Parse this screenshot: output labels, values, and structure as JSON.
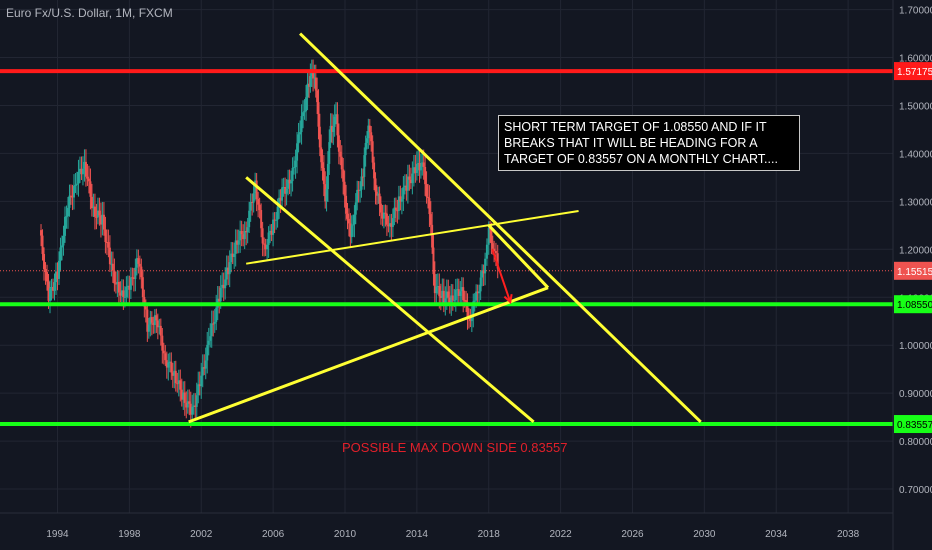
{
  "symbol_title": "Euro Fx/U.S. Dollar, 1M, FXCM",
  "annotation_text": "SHORT TERM TARGET OF 1.08550 AND IF IT BREAKS THAT IT WILL BE HEADING FOR A TARGET OF 0.83557 ON A MONTHLY CHART....",
  "max_downside_label": "POSSIBLE MAX DOWN SIDE 0.83557",
  "colors": {
    "background": "#131722",
    "grid": "#222633",
    "axis_text": "#b2b5be",
    "bull": "#26a69a",
    "bear": "#ef5350",
    "resistance": "#ff1a1a",
    "support": "#17ff17",
    "trendline": "#ffff33",
    "current_price": "#ef5350"
  },
  "chart_data": {
    "type": "line",
    "x_unit": "year",
    "xlim": [
      1990.8,
      2040.5
    ],
    "ylim": [
      0.65,
      1.72
    ],
    "x_ticks": [
      "1994",
      "1998",
      "2002",
      "2006",
      "2010",
      "2014",
      "2018",
      "2022",
      "2026",
      "2030",
      "2034",
      "2038"
    ],
    "y_ticks": [
      "1.70000",
      "1.60000",
      "1.50000",
      "1.40000",
      "1.30000",
      "1.20000",
      "1.10000",
      "1.00000",
      "0.90000",
      "0.80000",
      "0.70000"
    ],
    "price_series": {
      "name": "",
      "x": [
        1993.0,
        1993.5,
        1994.0,
        1994.5,
        1995.0,
        1995.5,
        1996.0,
        1996.5,
        1997.0,
        1997.5,
        1998.0,
        1998.5,
        1999.0,
        1999.5,
        2000.0,
        2000.5,
        2001.0,
        2001.5,
        2002.0,
        2002.5,
        2003.0,
        2003.5,
        2004.0,
        2004.5,
        2005.0,
        2005.5,
        2006.0,
        2006.5,
        2007.0,
        2007.5,
        2008.0,
        2008.3,
        2008.6,
        2008.9,
        2009.2,
        2009.5,
        2009.9,
        2010.3,
        2010.6,
        2011.0,
        2011.3,
        2011.7,
        2012.0,
        2012.5,
        2013.0,
        2013.5,
        2014.0,
        2014.3,
        2014.7,
        2015.0,
        2015.5,
        2016.0,
        2016.5,
        2016.9,
        2017.3,
        2017.8,
        2018.0,
        2018.3,
        2018.5
      ],
      "y": [
        1.24,
        1.1,
        1.15,
        1.28,
        1.34,
        1.38,
        1.28,
        1.26,
        1.16,
        1.1,
        1.12,
        1.18,
        1.04,
        1.06,
        0.97,
        0.94,
        0.89,
        0.86,
        0.93,
        1.02,
        1.1,
        1.16,
        1.22,
        1.24,
        1.34,
        1.2,
        1.25,
        1.32,
        1.34,
        1.45,
        1.55,
        1.57,
        1.42,
        1.3,
        1.45,
        1.47,
        1.33,
        1.22,
        1.3,
        1.36,
        1.47,
        1.33,
        1.28,
        1.25,
        1.3,
        1.34,
        1.37,
        1.38,
        1.28,
        1.12,
        1.1,
        1.1,
        1.12,
        1.05,
        1.1,
        1.17,
        1.24,
        1.2,
        1.16
      ]
    },
    "horizontal_lines": [
      {
        "label": "1.57175",
        "value": 1.57175,
        "color": "#ff1a1a"
      },
      {
        "label": "1.15515",
        "value": 1.15515,
        "color": "#ef5350",
        "dotted": true
      },
      {
        "label": "1.08550",
        "value": 1.0855,
        "color": "#17ff17"
      },
      {
        "label": "0.83557",
        "value": 0.83557,
        "color": "#17ff17"
      }
    ],
    "trendlines": [
      {
        "x1": 2007.5,
        "y1": 1.65,
        "x2": 2029.8,
        "y2": 0.84
      },
      {
        "x1": 2004.5,
        "y1": 1.35,
        "x2": 2020.5,
        "y2": 0.84
      },
      {
        "x1": 2001.3,
        "y1": 0.84,
        "x2": 2021.3,
        "y2": 1.12
      },
      {
        "x1": 2004.5,
        "y1": 1.17,
        "x2": 2023.0,
        "y2": 1.28
      },
      {
        "x1": 2018.0,
        "y1": 1.25,
        "x2": 2021.3,
        "y2": 1.12
      }
    ],
    "projection_arrow": {
      "x1": 2018.2,
      "y1": 1.2,
      "x2": 2019.2,
      "y2": 1.09
    }
  }
}
